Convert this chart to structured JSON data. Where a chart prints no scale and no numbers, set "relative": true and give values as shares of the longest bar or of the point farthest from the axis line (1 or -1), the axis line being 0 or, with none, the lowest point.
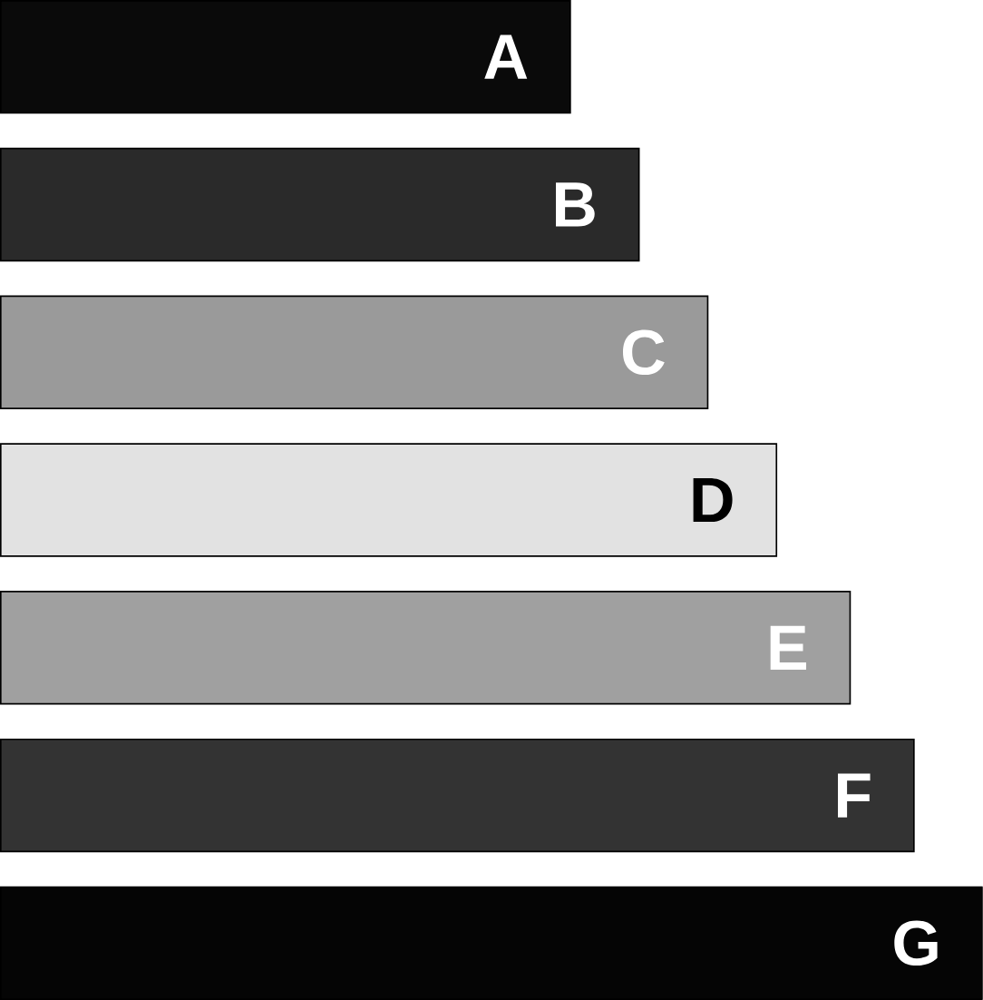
{
  "chart_data": {
    "type": "bar",
    "orientation": "horizontal",
    "relative": true,
    "categories": [
      "A",
      "B",
      "C",
      "D",
      "E",
      "F",
      "G"
    ],
    "values": [
      0.58,
      0.65,
      0.72,
      0.79,
      0.865,
      0.93,
      1
    ],
    "colors": [
      "#0a0a0a",
      "#2a2a2a",
      "#9a9a9a",
      "#e2e2e2",
      "#a0a0a0",
      "#333333",
      "#050505"
    ]
  }
}
